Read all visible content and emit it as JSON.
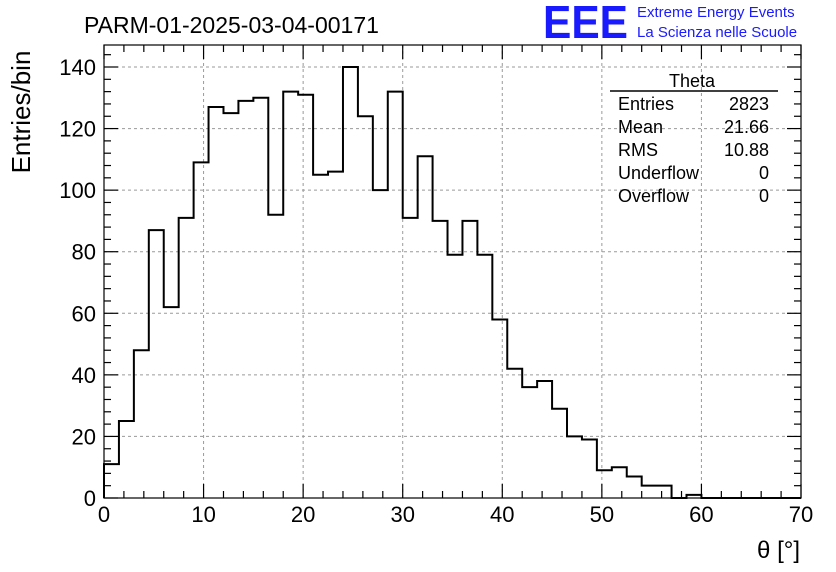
{
  "header": {
    "run_title": "PARM-01-2025-03-04-00171",
    "logo_letters": "EEE",
    "logo_line1": "Extreme Energy Events",
    "logo_line2": "La Scienza nelle Scuole"
  },
  "stats_box": {
    "title": "Theta",
    "rows": [
      {
        "label": "Entries",
        "value": "2823"
      },
      {
        "label": "Mean",
        "value": "21.66"
      },
      {
        "label": "RMS",
        "value": "10.88"
      },
      {
        "label": "Underflow",
        "value": "0"
      },
      {
        "label": "Overflow",
        "value": "0"
      }
    ]
  },
  "chart_data": {
    "type": "histogram",
    "title": "PARM-01-2025-03-04-00171",
    "xlabel": "θ [°]",
    "ylabel": "Entries/bin",
    "xlim": [
      0,
      70
    ],
    "ylim": [
      0,
      140
    ],
    "bin_width": 1.5,
    "x_ticks": [
      "0",
      "10",
      "20",
      "30",
      "40",
      "50",
      "60",
      "70"
    ],
    "y_ticks": [
      "0",
      "20",
      "40",
      "60",
      "80",
      "100",
      "120",
      "140"
    ],
    "grid": true,
    "values": [
      11,
      25,
      48,
      87,
      62,
      91,
      109,
      127,
      125,
      129,
      130,
      92,
      132,
      131,
      105,
      106,
      140,
      124,
      100,
      132,
      91,
      111,
      90,
      79,
      90,
      79,
      58,
      42,
      36,
      38,
      29,
      20,
      19,
      9,
      10,
      7,
      4,
      4,
      0,
      1,
      0,
      0,
      0,
      0,
      0,
      0,
      0
    ]
  },
  "colors": {
    "logo": "#1a1aff",
    "line": "#000000",
    "grid": "#9a9a9a"
  }
}
